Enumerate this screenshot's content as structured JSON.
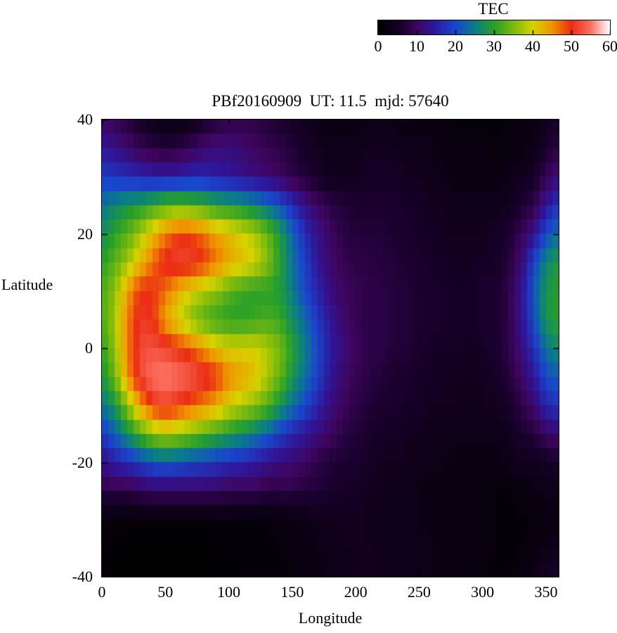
{
  "title": "PBf20160909  UT: 11.5  mjd: 57640",
  "colorbar": {
    "label": "TEC",
    "ticks": [
      0,
      10,
      20,
      30,
      40,
      50,
      60
    ],
    "min": 0,
    "max": 60
  },
  "axes": {
    "x_label": "Longitude",
    "y_label": "Latitude",
    "x_ticks": [
      0,
      50,
      100,
      150,
      200,
      250,
      300,
      350
    ],
    "y_ticks": [
      40,
      20,
      0,
      -20,
      -40
    ],
    "x_range": [
      0,
      360
    ],
    "y_range": [
      -40,
      40
    ]
  },
  "colors": {
    "background": "#ffffff",
    "axis": "#000000"
  },
  "palette": [
    {
      "v": 0,
      "rgb": [
        0,
        0,
        0
      ]
    },
    {
      "v": 6,
      "rgb": [
        25,
        0,
        45
      ]
    },
    {
      "v": 10,
      "rgb": [
        62,
        5,
        95
      ]
    },
    {
      "v": 14,
      "rgb": [
        48,
        20,
        150
      ]
    },
    {
      "v": 20,
      "rgb": [
        25,
        70,
        205
      ]
    },
    {
      "v": 25,
      "rgb": [
        10,
        125,
        135
      ]
    },
    {
      "v": 30,
      "rgb": [
        40,
        160,
        40
      ]
    },
    {
      "v": 36,
      "rgb": [
        140,
        190,
        10
      ]
    },
    {
      "v": 40,
      "rgb": [
        215,
        210,
        0
      ]
    },
    {
      "v": 45,
      "rgb": [
        240,
        150,
        0
      ]
    },
    {
      "v": 50,
      "rgb": [
        235,
        45,
        20
      ]
    },
    {
      "v": 55,
      "rgb": [
        250,
        110,
        95
      ]
    },
    {
      "v": 60,
      "rgb": [
        255,
        255,
        255
      ]
    }
  ],
  "chart_data": {
    "type": "heatmap",
    "title": "PBf20160909  UT: 11.5  mjd: 57640",
    "xlabel": "Longitude",
    "ylabel": "Latitude",
    "zlabel": "TEC",
    "x_range": [
      0,
      360
    ],
    "y_range": [
      -40,
      40
    ],
    "z_range": [
      0,
      60
    ],
    "lon": [
      0,
      10,
      20,
      30,
      40,
      50,
      60,
      70,
      80,
      90,
      100,
      110,
      120,
      130,
      140,
      150,
      160,
      170,
      180,
      190,
      200,
      210,
      220,
      230,
      240,
      250,
      260,
      270,
      280,
      290,
      300,
      310,
      320,
      330,
      340,
      350,
      360
    ],
    "lat": [
      40,
      35,
      30,
      25,
      20,
      15,
      10,
      5,
      0,
      -5,
      -10,
      -15,
      -20,
      -25,
      -30,
      -35,
      -40
    ],
    "tec": [
      [
        10,
        9,
        7,
        5,
        3,
        2,
        2,
        3,
        5,
        7,
        8,
        8,
        8,
        7,
        6,
        5,
        4,
        3,
        2,
        2,
        2,
        3,
        3,
        3,
        2,
        2,
        2,
        2,
        1,
        1,
        1,
        1,
        1,
        2,
        2,
        4,
        6
      ],
      [
        14,
        13,
        11,
        9,
        8,
        7,
        8,
        9,
        11,
        12,
        12,
        11,
        10,
        9,
        8,
        7,
        5,
        4,
        3,
        3,
        3,
        4,
        4,
        4,
        3,
        3,
        3,
        2,
        2,
        2,
        2,
        1,
        2,
        2,
        3,
        6,
        8
      ],
      [
        19,
        18,
        17,
        16,
        15,
        15,
        15,
        16,
        16,
        15,
        14,
        13,
        12,
        11,
        10,
        8,
        7,
        5,
        4,
        4,
        4,
        5,
        5,
        5,
        4,
        4,
        3,
        3,
        2,
        2,
        2,
        2,
        3,
        4,
        5,
        9,
        12
      ],
      [
        24,
        26,
        28,
        29,
        31,
        33,
        34,
        33,
        32,
        30,
        29,
        28,
        26,
        24,
        21,
        17,
        13,
        10,
        8,
        7,
        6,
        6,
        6,
        6,
        5,
        5,
        4,
        4,
        3,
        3,
        3,
        3,
        4,
        6,
        8,
        14,
        18
      ],
      [
        27,
        30,
        33,
        37,
        42,
        46,
        49,
        49,
        47,
        44,
        42,
        40,
        38,
        34,
        29,
        23,
        17,
        13,
        10,
        8,
        7,
        7,
        7,
        6,
        6,
        5,
        5,
        4,
        4,
        4,
        4,
        5,
        6,
        9,
        13,
        20,
        24
      ],
      [
        30,
        33,
        37,
        42,
        47,
        51,
        52,
        52,
        50,
        47,
        44,
        42,
        40,
        36,
        30,
        24,
        19,
        14,
        11,
        9,
        8,
        8,
        7,
        7,
        6,
        6,
        5,
        5,
        4,
        4,
        5,
        5,
        7,
        11,
        19,
        26,
        29
      ],
      [
        32,
        36,
        44,
        50,
        50,
        47,
        43,
        40,
        38,
        36,
        33,
        31,
        30,
        30,
        29,
        25,
        20,
        16,
        12,
        10,
        9,
        8,
        8,
        7,
        7,
        6,
        6,
        5,
        5,
        5,
        6,
        6,
        8,
        13,
        21,
        28,
        30
      ],
      [
        32,
        37,
        46,
        51,
        50,
        44,
        40,
        36,
        33,
        31,
        30,
        30,
        31,
        32,
        31,
        27,
        23,
        18,
        14,
        11,
        9,
        8,
        8,
        7,
        7,
        6,
        6,
        5,
        5,
        5,
        6,
        6,
        8,
        13,
        20,
        28,
        30
      ],
      [
        30,
        36,
        46,
        52,
        53,
        52,
        50,
        48,
        45,
        42,
        40,
        40,
        40,
        38,
        35,
        30,
        25,
        20,
        15,
        12,
        10,
        8,
        8,
        7,
        7,
        6,
        5,
        5,
        5,
        4,
        5,
        6,
        8,
        12,
        17,
        24,
        27
      ],
      [
        28,
        34,
        45,
        52,
        55,
        56,
        55,
        54,
        52,
        50,
        46,
        44,
        42,
        38,
        34,
        28,
        24,
        19,
        14,
        11,
        9,
        8,
        7,
        6,
        6,
        5,
        5,
        4,
        4,
        4,
        4,
        5,
        7,
        10,
        14,
        20,
        22
      ],
      [
        24,
        28,
        36,
        44,
        50,
        52,
        50,
        48,
        46,
        44,
        40,
        38,
        36,
        33,
        28,
        24,
        20,
        16,
        12,
        10,
        8,
        7,
        6,
        6,
        5,
        5,
        4,
        4,
        4,
        3,
        4,
        4,
        5,
        8,
        11,
        16,
        18
      ],
      [
        18,
        22,
        27,
        32,
        36,
        38,
        37,
        35,
        33,
        31,
        29,
        27,
        25,
        22,
        19,
        16,
        14,
        12,
        10,
        8,
        7,
        6,
        5,
        5,
        4,
        4,
        3,
        3,
        3,
        3,
        3,
        3,
        4,
        6,
        7,
        10,
        11
      ],
      [
        13,
        15,
        17,
        19,
        21,
        22,
        21,
        20,
        19,
        18,
        17,
        16,
        15,
        13,
        12,
        11,
        10,
        8,
        7,
        6,
        6,
        5,
        4,
        4,
        4,
        3,
        3,
        3,
        2,
        2,
        2,
        2,
        3,
        4,
        4,
        5,
        6
      ],
      [
        8,
        8,
        8,
        9,
        10,
        10,
        10,
        10,
        10,
        10,
        9,
        9,
        9,
        8,
        8,
        8,
        7,
        7,
        6,
        5,
        5,
        4,
        4,
        3,
        3,
        3,
        2,
        2,
        2,
        2,
        2,
        1,
        1,
        2,
        2,
        3,
        3
      ],
      [
        2,
        1,
        1,
        1,
        1,
        1,
        1,
        1,
        1,
        1,
        1,
        1,
        1,
        1,
        2,
        2,
        3,
        3,
        4,
        4,
        4,
        4,
        3,
        3,
        3,
        3,
        2,
        2,
        2,
        2,
        2,
        1,
        1,
        1,
        1,
        2,
        2
      ],
      [
        1,
        1,
        0,
        0,
        0,
        0,
        0,
        0,
        0,
        1,
        1,
        1,
        1,
        1,
        1,
        2,
        2,
        3,
        3,
        4,
        4,
        4,
        4,
        3,
        3,
        3,
        3,
        2,
        2,
        2,
        2,
        1,
        1,
        1,
        2,
        3,
        4
      ],
      [
        1,
        0,
        0,
        0,
        0,
        0,
        0,
        0,
        0,
        0,
        0,
        1,
        1,
        1,
        1,
        1,
        2,
        2,
        3,
        3,
        4,
        4,
        4,
        3,
        3,
        3,
        3,
        2,
        2,
        2,
        1,
        1,
        1,
        2,
        3,
        5,
        6
      ]
    ]
  }
}
